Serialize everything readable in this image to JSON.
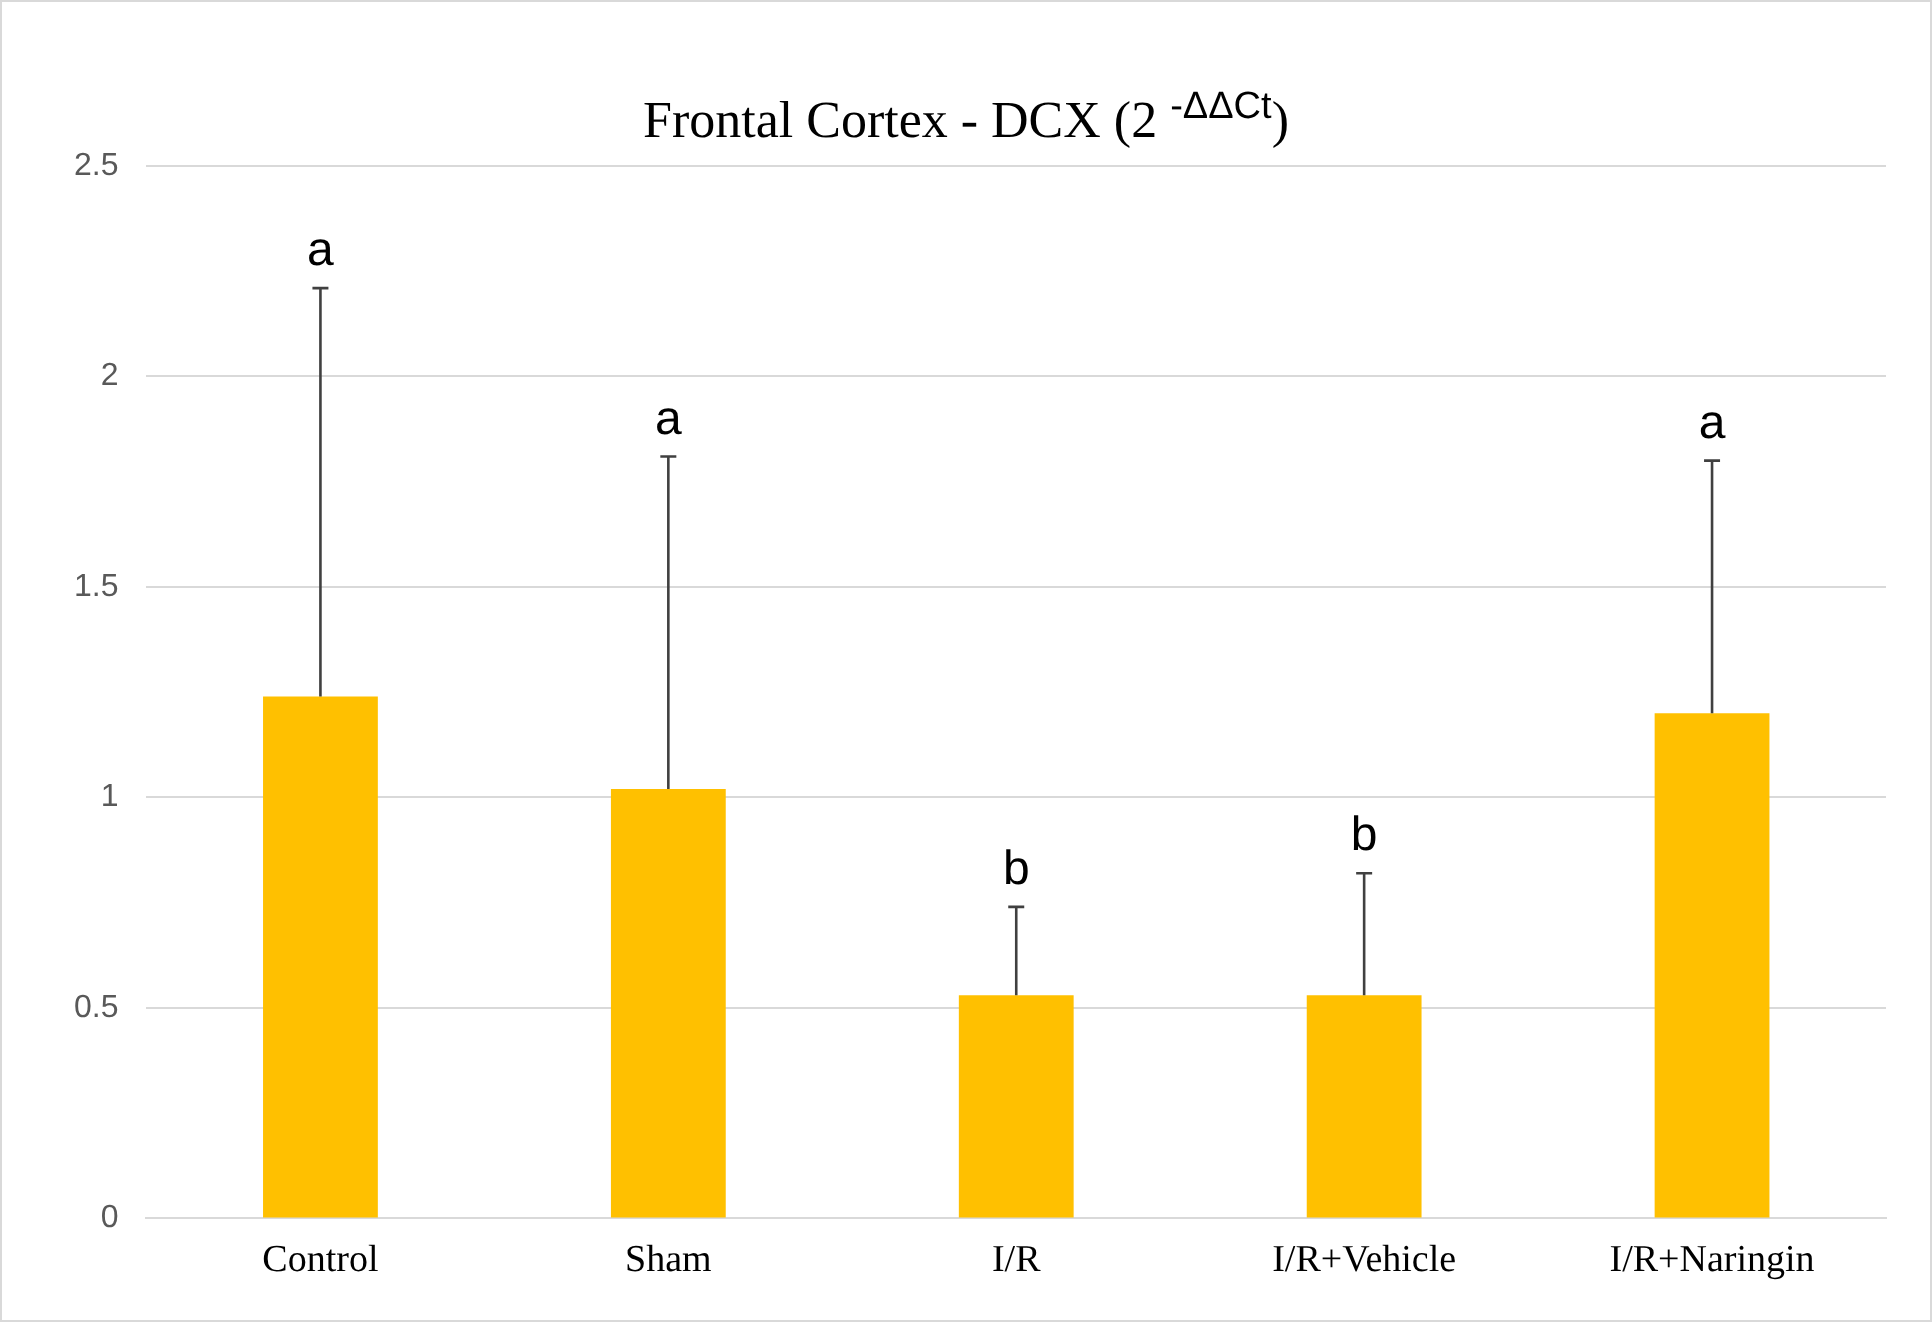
{
  "chart_data": {
    "type": "bar",
    "title": "Frontal Cortex - DCX (2 $^{-ΔΔCt}$)",
    "categories": [
      "Control",
      "Sham",
      "I/R",
      "I/R+Vehicle",
      "I/R+Naringin"
    ],
    "values": [
      1.24,
      1.02,
      0.53,
      0.53,
      1.2
    ],
    "color": "#ffc000",
    "errors": [
      [
        1.24,
        2.21
      ],
      [
        1.02,
        1.81
      ],
      [
        0.53,
        0.74
      ],
      [
        0.53,
        0.82
      ],
      [
        1.2,
        1.8
      ]
    ],
    "ylim": [
      0,
      2.5
    ],
    "yticks": [
      0,
      0.5,
      1,
      1.5,
      2,
      2.5
    ],
    "grid": "y",
    "legend": false,
    "annotations": [
      {
        "text": "a",
        "x": "Control",
        "y": 2.21
      },
      {
        "text": "a",
        "x": "Sham",
        "y": 1.81
      },
      {
        "text": "b",
        "x": "I/R",
        "y": 0.74
      },
      {
        "text": "b",
        "x": "I/R+Vehicle",
        "y": 0.82
      },
      {
        "text": "a",
        "x": "I/R+Naringin",
        "y": 1.8
      }
    ]
  }
}
